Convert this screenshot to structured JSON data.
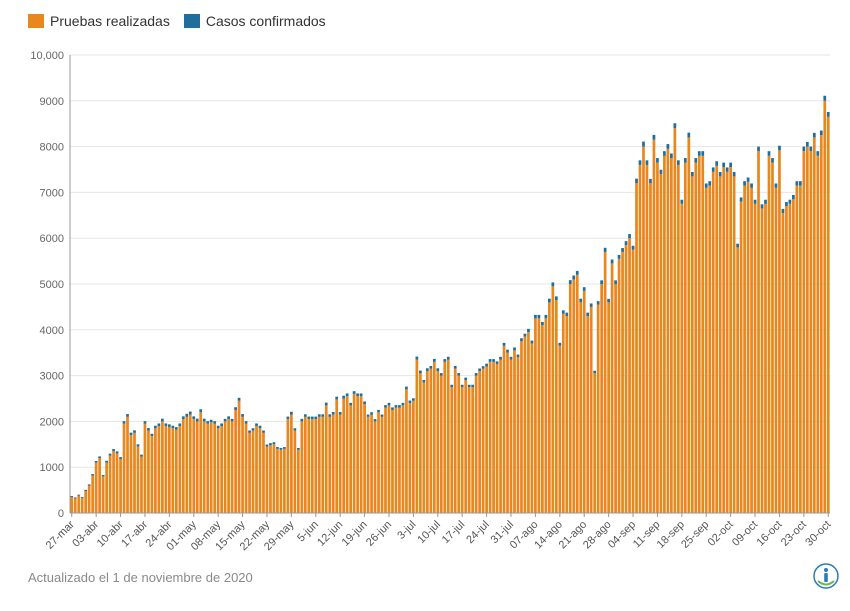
{
  "legend": {
    "tests_label": "Pruebas realizadas",
    "cases_label": "Casos confirmados"
  },
  "colors": {
    "tests": "#E8871E",
    "cases": "#1F6E9C",
    "axis": "#999999",
    "grid": "#e6e6e6"
  },
  "footer": {
    "updated": "Actualizado el 1 de noviembre de 2020"
  },
  "chart_data": {
    "type": "bar",
    "stacked": true,
    "title": "",
    "xlabel": "",
    "ylabel": "",
    "ylim": [
      0,
      10000
    ],
    "yticks": [
      "0",
      "1000",
      "2000",
      "3000",
      "4000",
      "5000",
      "6000",
      "7000",
      "8000",
      "9000",
      "10,000"
    ],
    "xticks": [
      "27-mar",
      "03-abr",
      "10-abr",
      "17-abr",
      "24-abr",
      "01-may",
      "08-may",
      "15-may",
      "22-may",
      "29-may",
      "5-jun",
      "12-jun",
      "19-jun",
      "26-jun",
      "3-jul",
      "10-jul",
      "17-jul",
      "24-jul",
      "31-jul",
      "07-ago",
      "14-ago",
      "21-ago",
      "28-ago",
      "04-sep",
      "11-sep",
      "18-sep",
      "25-sep",
      "02-oct",
      "09-oct",
      "16-oct",
      "23-oct",
      "30-oct"
    ],
    "legend_position": "top-left",
    "grid": true,
    "series": [
      {
        "name": "Pruebas realizadas",
        "values": [
          350,
          320,
          380,
          330,
          480,
          600,
          820,
          1100,
          1200,
          800,
          1100,
          1250,
          1350,
          1300,
          1180,
          1950,
          2100,
          1700,
          1750,
          1450,
          1230,
          1950,
          1800,
          1680,
          1850,
          1900,
          2000,
          1900,
          1880,
          1850,
          1820,
          1900,
          2050,
          2100,
          2150,
          2050,
          2000,
          2200,
          2000,
          1950,
          1980,
          1950,
          1850,
          1900,
          2000,
          2050,
          2000,
          2250,
          2450,
          2100,
          1950,
          1750,
          1800,
          1900,
          1850,
          1750,
          1450,
          1480,
          1500,
          1400,
          1380,
          1400,
          2050,
          2150,
          1800,
          1380,
          2000,
          2100,
          2050,
          2050,
          2050,
          2100,
          2100,
          2350,
          2100,
          2150,
          2480,
          2150,
          2500,
          2550,
          2350,
          2600,
          2550,
          2550,
          2380,
          2100,
          2150,
          2000,
          2200,
          2100,
          2300,
          2350,
          2250,
          2300,
          2300,
          2350,
          2700,
          2400,
          2450,
          3350,
          3050,
          2850,
          3100,
          3150,
          3300,
          3100,
          3000,
          3300,
          3350,
          2750,
          3150,
          3000,
          2750,
          2900,
          2750,
          2750,
          3000,
          3100,
          3150,
          3200,
          3300,
          3300,
          3250,
          3350,
          3650,
          3500,
          3350,
          3550,
          3400,
          3750,
          3850,
          3950,
          3700,
          4250,
          4250,
          4100,
          4250,
          4600,
          4950,
          4650,
          3650,
          4350,
          4300,
          5000,
          5100,
          5200,
          4600,
          4850,
          4300,
          4500,
          3050,
          4550,
          5000,
          5700,
          4600,
          5450,
          5000,
          5550,
          5700,
          5850,
          6000,
          5750,
          7200,
          7600,
          8000,
          7600,
          7200,
          8150,
          7650,
          7400,
          7800,
          7950,
          7750,
          8400,
          7600,
          6750,
          7650,
          8200,
          7350,
          7650,
          7800,
          7800,
          7100,
          7150,
          7450,
          7580,
          7350,
          7550,
          7450,
          7550,
          7350,
          5800,
          6800,
          7150,
          7230,
          7100,
          6750,
          7900,
          6650,
          6750,
          7800,
          7650,
          7100,
          7920,
          6550,
          6700,
          6750,
          6850,
          7150,
          7150,
          7900,
          8000,
          7900,
          8200,
          7800,
          8250,
          9000,
          8650
        ],
        "color": "#E8871E"
      },
      {
        "name": "Casos confirmados",
        "values": [
          20,
          20,
          20,
          20,
          25,
          25,
          30,
          35,
          35,
          30,
          40,
          45,
          45,
          45,
          40,
          55,
          60,
          55,
          55,
          50,
          45,
          55,
          55,
          50,
          55,
          55,
          60,
          55,
          55,
          55,
          55,
          55,
          60,
          65,
          65,
          60,
          60,
          65,
          60,
          55,
          55,
          55,
          55,
          55,
          55,
          60,
          55,
          60,
          65,
          60,
          55,
          50,
          50,
          55,
          55,
          50,
          45,
          45,
          45,
          40,
          40,
          40,
          55,
          60,
          50,
          40,
          55,
          55,
          55,
          55,
          55,
          55,
          55,
          60,
          55,
          55,
          60,
          55,
          60,
          60,
          55,
          60,
          60,
          60,
          55,
          50,
          50,
          50,
          50,
          50,
          55,
          55,
          55,
          55,
          55,
          55,
          60,
          55,
          55,
          65,
          60,
          55,
          60,
          60,
          65,
          60,
          55,
          60,
          60,
          50,
          60,
          55,
          50,
          55,
          50,
          50,
          55,
          55,
          55,
          60,
          60,
          60,
          60,
          60,
          65,
          65,
          60,
          65,
          60,
          65,
          65,
          70,
          65,
          75,
          75,
          70,
          75,
          80,
          85,
          80,
          65,
          75,
          75,
          85,
          85,
          85,
          80,
          80,
          75,
          75,
          55,
          75,
          80,
          90,
          75,
          85,
          80,
          85,
          85,
          85,
          90,
          85,
          100,
          100,
          110,
          100,
          95,
          105,
          100,
          95,
          100,
          105,
          100,
          110,
          100,
          90,
          100,
          105,
          95,
          100,
          100,
          100,
          95,
          95,
          95,
          100,
          95,
          100,
          95,
          100,
          95,
          80,
          90,
          95,
          95,
          95,
          90,
          100,
          90,
          90,
          100,
          100,
          95,
          100,
          90,
          90,
          90,
          95,
          95,
          95,
          100,
          100,
          100,
          100,
          100,
          100,
          110,
          105
        ],
        "color": "#1F6E9C"
      }
    ]
  }
}
